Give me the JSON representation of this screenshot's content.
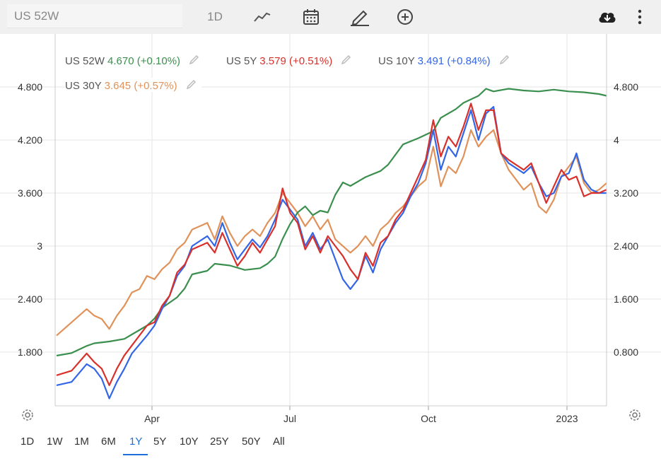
{
  "toolbar": {
    "symbol_value": "US 52W",
    "interval_label": "1D",
    "icons": [
      "line-chart-icon",
      "calendar-icon",
      "draw-icon",
      "add-compare-icon",
      "download-icon",
      "more-icon"
    ]
  },
  "legend": [
    {
      "name": "US 52W",
      "value": "4.670",
      "change": "(+0.10%)",
      "color": "#3b8f4e"
    },
    {
      "name": "US 5Y",
      "value": "3.579",
      "change": "(+0.51%)",
      "color": "#d9302b"
    },
    {
      "name": "US 10Y",
      "value": "3.491",
      "change": "(+0.84%)",
      "color": "#3366e6"
    },
    {
      "name": "US 30Y",
      "value": "3.645",
      "change": "(+0.57%)",
      "color": "#e0925a"
    }
  ],
  "ranges": [
    "1D",
    "1W",
    "1M",
    "6M",
    "1Y",
    "5Y",
    "10Y",
    "25Y",
    "50Y",
    "All"
  ],
  "active_range": "1Y",
  "chart_data": {
    "type": "line",
    "x_axis_labels": [
      "Apr",
      "Jul",
      "Oct",
      "2023"
    ],
    "left_ticks": [
      "1.800",
      "2.400",
      "3",
      "3.600",
      "4.200",
      "4.800"
    ],
    "right_ticks": [
      "0.800",
      "1.600",
      "2.400",
      "3.200",
      "4",
      "4.800"
    ],
    "left_ylim": [
      1.2,
      5.25
    ],
    "right_ylim": [
      0.0,
      5.4
    ],
    "grid": true,
    "legend_placement": "top-left",
    "series": [
      {
        "name": "US 52W",
        "axis": "left",
        "color": "#3b8f4e",
        "points": [
          [
            0,
            1.76
          ],
          [
            2,
            1.79
          ],
          [
            4,
            1.87
          ],
          [
            5,
            1.9
          ],
          [
            7,
            1.92
          ],
          [
            9,
            1.95
          ],
          [
            10,
            2.0
          ],
          [
            12,
            2.1
          ],
          [
            13,
            2.18
          ],
          [
            14,
            2.3
          ],
          [
            16,
            2.42
          ],
          [
            17,
            2.52
          ],
          [
            18,
            2.68
          ],
          [
            20,
            2.72
          ],
          [
            21,
            2.8
          ],
          [
            23,
            2.78
          ],
          [
            25,
            2.73
          ],
          [
            27,
            2.75
          ],
          [
            28,
            2.8
          ],
          [
            29,
            2.88
          ],
          [
            30,
            3.08
          ],
          [
            31,
            3.25
          ],
          [
            32,
            3.38
          ],
          [
            33,
            3.45
          ],
          [
            34,
            3.35
          ],
          [
            35,
            3.4
          ],
          [
            36,
            3.38
          ],
          [
            37,
            3.58
          ],
          [
            38,
            3.72
          ],
          [
            39,
            3.68
          ],
          [
            41,
            3.78
          ],
          [
            43,
            3.85
          ],
          [
            44,
            3.92
          ],
          [
            46,
            4.15
          ],
          [
            48,
            4.22
          ],
          [
            50,
            4.3
          ],
          [
            51,
            4.45
          ],
          [
            53,
            4.55
          ],
          [
            54,
            4.62
          ],
          [
            56,
            4.7
          ],
          [
            57,
            4.78
          ],
          [
            58,
            4.75
          ],
          [
            60,
            4.78
          ],
          [
            62,
            4.76
          ],
          [
            64,
            4.75
          ],
          [
            66,
            4.77
          ],
          [
            68,
            4.75
          ],
          [
            70,
            4.74
          ],
          [
            72,
            4.72
          ],
          [
            73,
            4.7
          ]
        ]
      },
      {
        "name": "US 5Y",
        "axis": "right",
        "color": "#d9302b",
        "points": [
          [
            0,
            0.45
          ],
          [
            2,
            0.52
          ],
          [
            4,
            0.78
          ],
          [
            5,
            0.65
          ],
          [
            6,
            0.55
          ],
          [
            7,
            0.3
          ],
          [
            8,
            0.55
          ],
          [
            9,
            0.75
          ],
          [
            10,
            0.9
          ],
          [
            12,
            1.2
          ],
          [
            13,
            1.25
          ],
          [
            14,
            1.5
          ],
          [
            15,
            1.65
          ],
          [
            16,
            2.0
          ],
          [
            17,
            2.12
          ],
          [
            18,
            2.35
          ],
          [
            20,
            2.45
          ],
          [
            21,
            2.3
          ],
          [
            22,
            2.6
          ],
          [
            23,
            2.35
          ],
          [
            24,
            2.1
          ],
          [
            25,
            2.25
          ],
          [
            26,
            2.45
          ],
          [
            27,
            2.3
          ],
          [
            28,
            2.5
          ],
          [
            29,
            2.7
          ],
          [
            30,
            3.27
          ],
          [
            31,
            2.9
          ],
          [
            32,
            2.75
          ],
          [
            33,
            2.35
          ],
          [
            34,
            2.55
          ],
          [
            35,
            2.3
          ],
          [
            36,
            2.55
          ],
          [
            37,
            2.4
          ],
          [
            38,
            2.25
          ],
          [
            39,
            2.05
          ],
          [
            40,
            1.9
          ],
          [
            41,
            2.3
          ],
          [
            42,
            2.1
          ],
          [
            43,
            2.45
          ],
          [
            44,
            2.55
          ],
          [
            45,
            2.8
          ],
          [
            46,
            2.95
          ],
          [
            47,
            3.2
          ],
          [
            48,
            3.45
          ],
          [
            49,
            3.7
          ],
          [
            50,
            4.3
          ],
          [
            51,
            3.75
          ],
          [
            52,
            4.05
          ],
          [
            53,
            3.9
          ],
          [
            54,
            4.2
          ],
          [
            55,
            4.55
          ],
          [
            56,
            4.15
          ],
          [
            57,
            4.45
          ],
          [
            58,
            4.45
          ],
          [
            59,
            3.8
          ],
          [
            60,
            3.7
          ],
          [
            62,
            3.55
          ],
          [
            63,
            3.65
          ],
          [
            64,
            3.35
          ],
          [
            65,
            3.05
          ],
          [
            66,
            3.3
          ],
          [
            67,
            3.55
          ],
          [
            68,
            3.4
          ],
          [
            69,
            3.45
          ],
          [
            70,
            3.15
          ],
          [
            71,
            3.2
          ],
          [
            72,
            3.2
          ],
          [
            73,
            3.25
          ]
        ]
      },
      {
        "name": "US 10Y",
        "axis": "right",
        "color": "#3366e6",
        "points": [
          [
            0,
            0.3
          ],
          [
            2,
            0.35
          ],
          [
            4,
            0.62
          ],
          [
            5,
            0.55
          ],
          [
            6,
            0.4
          ],
          [
            7,
            0.1
          ],
          [
            8,
            0.35
          ],
          [
            9,
            0.55
          ],
          [
            10,
            0.78
          ],
          [
            12,
            1.05
          ],
          [
            13,
            1.2
          ],
          [
            14,
            1.45
          ],
          [
            15,
            1.65
          ],
          [
            16,
            1.95
          ],
          [
            17,
            2.1
          ],
          [
            18,
            2.4
          ],
          [
            20,
            2.55
          ],
          [
            21,
            2.4
          ],
          [
            22,
            2.75
          ],
          [
            23,
            2.45
          ],
          [
            24,
            2.2
          ],
          [
            25,
            2.35
          ],
          [
            26,
            2.5
          ],
          [
            27,
            2.38
          ],
          [
            28,
            2.55
          ],
          [
            29,
            2.8
          ],
          [
            30,
            3.1
          ],
          [
            31,
            2.95
          ],
          [
            32,
            2.8
          ],
          [
            33,
            2.4
          ],
          [
            34,
            2.6
          ],
          [
            35,
            2.35
          ],
          [
            36,
            2.5
          ],
          [
            37,
            2.2
          ],
          [
            38,
            1.9
          ],
          [
            39,
            1.75
          ],
          [
            40,
            1.9
          ],
          [
            41,
            2.25
          ],
          [
            42,
            2.0
          ],
          [
            43,
            2.35
          ],
          [
            44,
            2.55
          ],
          [
            45,
            2.75
          ],
          [
            46,
            2.9
          ],
          [
            47,
            3.15
          ],
          [
            48,
            3.35
          ],
          [
            49,
            3.65
          ],
          [
            50,
            4.15
          ],
          [
            51,
            3.55
          ],
          [
            52,
            3.9
          ],
          [
            53,
            3.75
          ],
          [
            54,
            4.1
          ],
          [
            55,
            4.45
          ],
          [
            56,
            4.0
          ],
          [
            57,
            4.4
          ],
          [
            58,
            4.5
          ],
          [
            59,
            3.8
          ],
          [
            60,
            3.65
          ],
          [
            62,
            3.5
          ],
          [
            63,
            3.6
          ],
          [
            64,
            3.35
          ],
          [
            65,
            3.15
          ],
          [
            66,
            3.2
          ],
          [
            67,
            3.45
          ],
          [
            68,
            3.5
          ],
          [
            69,
            3.8
          ],
          [
            70,
            3.4
          ],
          [
            71,
            3.25
          ],
          [
            72,
            3.2
          ],
          [
            73,
            3.2
          ]
        ]
      },
      {
        "name": "US 30Y",
        "axis": "right",
        "color": "#e0925a",
        "points": [
          [
            0,
            1.05
          ],
          [
            2,
            1.25
          ],
          [
            4,
            1.45
          ],
          [
            5,
            1.35
          ],
          [
            6,
            1.3
          ],
          [
            7,
            1.15
          ],
          [
            8,
            1.35
          ],
          [
            9,
            1.5
          ],
          [
            10,
            1.7
          ],
          [
            11,
            1.75
          ],
          [
            12,
            1.95
          ],
          [
            13,
            1.9
          ],
          [
            14,
            2.05
          ],
          [
            15,
            2.15
          ],
          [
            16,
            2.35
          ],
          [
            17,
            2.45
          ],
          [
            18,
            2.65
          ],
          [
            20,
            2.75
          ],
          [
            21,
            2.5
          ],
          [
            22,
            2.85
          ],
          [
            23,
            2.6
          ],
          [
            24,
            2.4
          ],
          [
            25,
            2.55
          ],
          [
            26,
            2.65
          ],
          [
            27,
            2.55
          ],
          [
            28,
            2.75
          ],
          [
            29,
            2.9
          ],
          [
            30,
            3.2
          ],
          [
            31,
            3.05
          ],
          [
            32,
            2.9
          ],
          [
            33,
            2.7
          ],
          [
            34,
            2.85
          ],
          [
            35,
            2.65
          ],
          [
            36,
            2.8
          ],
          [
            37,
            2.5
          ],
          [
            38,
            2.4
          ],
          [
            39,
            2.3
          ],
          [
            40,
            2.4
          ],
          [
            41,
            2.55
          ],
          [
            42,
            2.4
          ],
          [
            43,
            2.65
          ],
          [
            44,
            2.75
          ],
          [
            45,
            2.9
          ],
          [
            46,
            3.0
          ],
          [
            47,
            3.15
          ],
          [
            48,
            3.3
          ],
          [
            49,
            3.4
          ],
          [
            50,
            3.9
          ],
          [
            51,
            3.3
          ],
          [
            52,
            3.6
          ],
          [
            53,
            3.5
          ],
          [
            54,
            3.75
          ],
          [
            55,
            4.15
          ],
          [
            56,
            3.9
          ],
          [
            57,
            4.05
          ],
          [
            58,
            4.15
          ],
          [
            59,
            3.8
          ],
          [
            60,
            3.55
          ],
          [
            62,
            3.25
          ],
          [
            63,
            3.35
          ],
          [
            64,
            3.0
          ],
          [
            65,
            2.9
          ],
          [
            66,
            3.1
          ],
          [
            67,
            3.45
          ],
          [
            68,
            3.6
          ],
          [
            69,
            3.75
          ],
          [
            70,
            3.35
          ],
          [
            71,
            3.2
          ],
          [
            72,
            3.25
          ],
          [
            73,
            3.35
          ]
        ]
      }
    ]
  }
}
